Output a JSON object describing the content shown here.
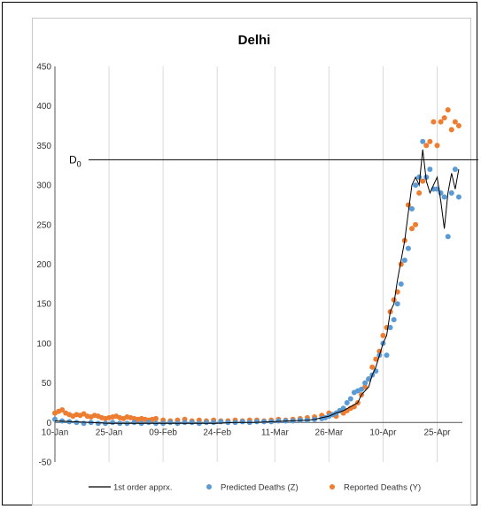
{
  "chart_data": {
    "type": "scatter",
    "title": "Delhi",
    "xlabel": "",
    "ylabel": "",
    "ylim": [
      -50,
      450
    ],
    "yticks": [
      -50,
      0,
      50,
      100,
      150,
      200,
      250,
      300,
      350,
      400,
      450
    ],
    "xlim_day": [
      0,
      113
    ],
    "xticks": [
      {
        "day": 0,
        "label": "10-Jan"
      },
      {
        "day": 15,
        "label": "25-Jan"
      },
      {
        "day": 30,
        "label": "09-Feb"
      },
      {
        "day": 45,
        "label": "24-Feb"
      },
      {
        "day": 61,
        "label": "11-Mar"
      },
      {
        "day": 76,
        "label": "26-Mar"
      },
      {
        "day": 91,
        "label": "10-Apr"
      },
      {
        "day": 106,
        "label": "25-Apr"
      }
    ],
    "grid": "vertical",
    "legend_position": "bottom",
    "reference_line": {
      "label": "D",
      "subscript": "0",
      "value": 332
    },
    "colors": {
      "line": "#000000",
      "predicted": "#5b9bd5",
      "reported": "#ed7d31",
      "axis": "#555555",
      "grid": "#d9d9d9"
    },
    "series": [
      {
        "name": "1st order apprx.",
        "style": "line",
        "x": [
          0,
          5,
          10,
          15,
          20,
          25,
          30,
          35,
          40,
          45,
          50,
          55,
          60,
          65,
          70,
          72,
          74,
          76,
          78,
          80,
          82,
          84,
          85,
          86,
          87,
          88,
          89,
          90,
          91,
          92,
          93,
          94,
          95,
          96,
          97,
          98,
          99,
          100,
          101,
          102,
          103,
          104,
          105,
          106,
          107,
          108,
          109,
          110,
          111,
          112
        ],
        "y": [
          2,
          1,
          0,
          -1,
          -1,
          -1,
          -1,
          -1,
          -1,
          -1,
          0,
          0,
          1,
          2,
          3,
          4,
          6,
          8,
          12,
          15,
          20,
          25,
          35,
          40,
          45,
          60,
          70,
          85,
          100,
          110,
          140,
          150,
          180,
          205,
          230,
          265,
          300,
          310,
          300,
          345,
          305,
          290,
          300,
          310,
          280,
          245,
          290,
          315,
          295,
          320
        ]
      },
      {
        "name": "Predicted Deaths (Z)",
        "style": "dot",
        "x": [
          0,
          2,
          4,
          6,
          8,
          10,
          12,
          14,
          16,
          18,
          20,
          22,
          24,
          26,
          28,
          30,
          32,
          34,
          36,
          38,
          40,
          42,
          44,
          46,
          48,
          50,
          52,
          54,
          56,
          58,
          60,
          62,
          64,
          66,
          68,
          70,
          72,
          74,
          75,
          76,
          77,
          78,
          79,
          80,
          81,
          82,
          83,
          84,
          85,
          86,
          87,
          88,
          89,
          90,
          91,
          92,
          93,
          94,
          95,
          96,
          97,
          98,
          99,
          100,
          101,
          102,
          103,
          104,
          105,
          106,
          107,
          108,
          109,
          110,
          111,
          112
        ],
        "y": [
          4,
          2,
          1,
          0,
          -1,
          0,
          -1,
          -1,
          0,
          -1,
          -1,
          0,
          -1,
          0,
          -1,
          -1,
          0,
          -1,
          0,
          0,
          -1,
          0,
          0,
          1,
          0,
          0,
          1,
          0,
          1,
          1,
          1,
          2,
          2,
          2,
          3,
          3,
          4,
          5,
          6,
          8,
          10,
          12,
          15,
          18,
          25,
          30,
          38,
          40,
          42,
          50,
          55,
          60,
          65,
          85,
          100,
          85,
          120,
          130,
          150,
          175,
          205,
          220,
          270,
          300,
          310,
          355,
          310,
          320,
          295,
          295,
          290,
          285,
          235,
          290,
          320,
          285
        ]
      },
      {
        "name": "Reported Deaths (Y)",
        "style": "dot",
        "x": [
          0,
          1,
          2,
          3,
          4,
          5,
          6,
          7,
          8,
          9,
          10,
          11,
          12,
          13,
          14,
          15,
          16,
          17,
          18,
          19,
          20,
          21,
          22,
          23,
          24,
          25,
          26,
          27,
          28,
          30,
          32,
          34,
          36,
          38,
          40,
          42,
          44,
          46,
          48,
          50,
          52,
          54,
          56,
          58,
          60,
          62,
          64,
          66,
          68,
          70,
          72,
          74,
          76,
          77,
          78,
          79,
          80,
          81,
          82,
          83,
          84,
          85,
          86,
          87,
          88,
          89,
          90,
          91,
          92,
          93,
          94,
          95,
          96,
          97,
          98,
          99,
          100,
          101,
          102,
          103,
          104,
          105,
          106,
          107,
          108,
          109,
          110,
          111,
          112
        ],
        "y": [
          12,
          14,
          16,
          12,
          10,
          8,
          10,
          9,
          11,
          8,
          7,
          9,
          8,
          6,
          5,
          6,
          7,
          8,
          6,
          5,
          7,
          6,
          5,
          4,
          5,
          4,
          3,
          4,
          5,
          3,
          2,
          3,
          4,
          2,
          3,
          2,
          3,
          2,
          2,
          3,
          2,
          3,
          3,
          2,
          3,
          4,
          3,
          4,
          5,
          6,
          7,
          9,
          12,
          10,
          8,
          15,
          12,
          15,
          18,
          20,
          25,
          35,
          45,
          55,
          70,
          80,
          90,
          110,
          120,
          140,
          155,
          165,
          200,
          230,
          275,
          245,
          250,
          290,
          305,
          350,
          355,
          380,
          350,
          380,
          385,
          395,
          370,
          380,
          375
        ]
      }
    ]
  }
}
